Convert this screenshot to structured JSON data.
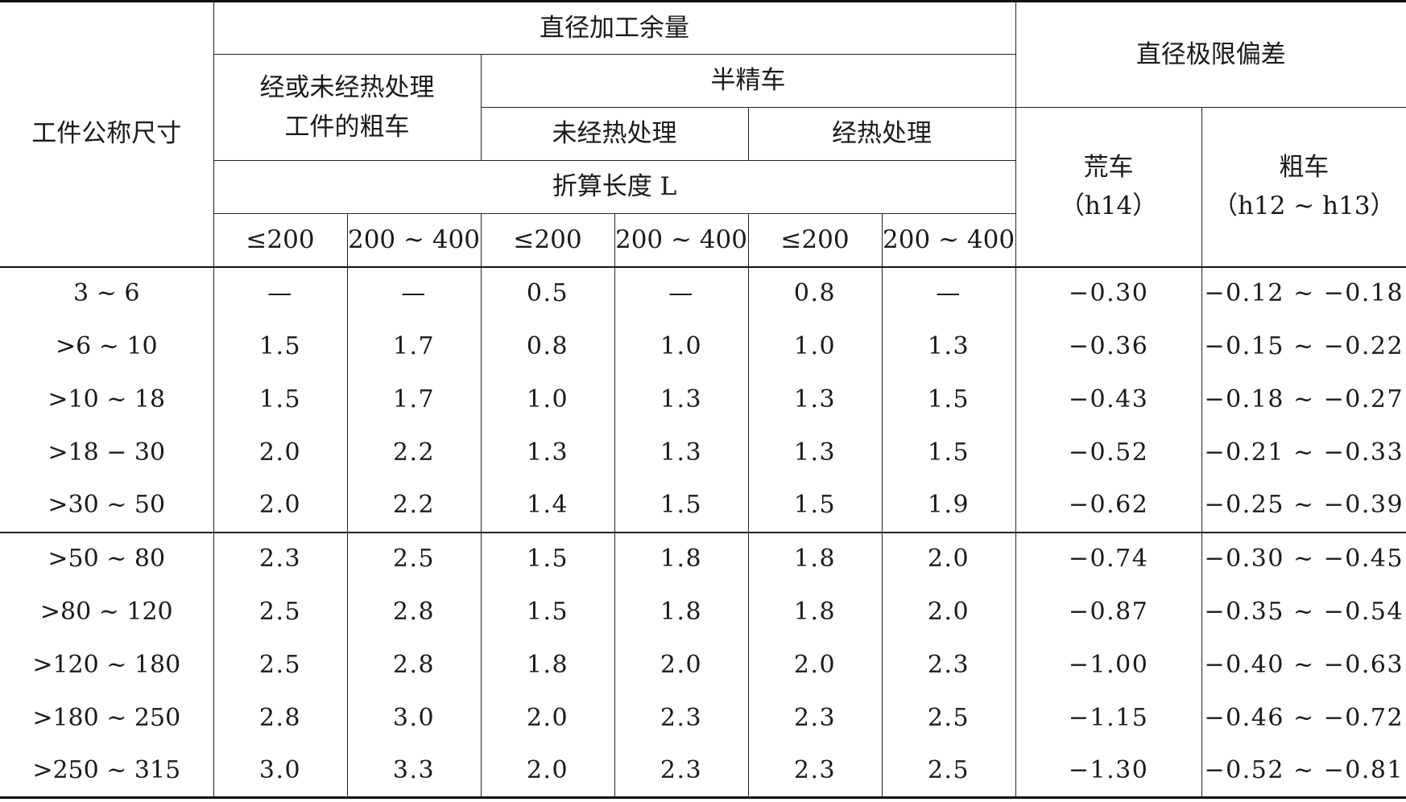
{
  "header": {
    "size_col": "工件公称尺寸",
    "allowance": "直径加工余量",
    "rough": {
      "line1": "经或未经热处理",
      "line2": "工件的粗车"
    },
    "semi_finish": "半精车",
    "untreated": "未经热处理",
    "treated": "经热处理",
    "length": "折算长度 L",
    "sub_cols": [
      "≤200",
      "200 ~ 400",
      "≤200",
      "200 ~ 400",
      "≤200",
      "200 ~ 400"
    ],
    "limit_dev": "直径极限偏差",
    "blank": {
      "line1": "荒车",
      "line2": "（h14）"
    },
    "rough_dev": {
      "line1": "粗车",
      "line2": "（h12 ~ h13）"
    }
  },
  "rows": [
    [
      "3 ~ 6",
      "—",
      "—",
      "0.5",
      "—",
      "0.8",
      "—",
      "−0.30",
      "−0.12 ~ −0.18"
    ],
    [
      ">6 ~ 10",
      "1.5",
      "1.7",
      "0.8",
      "1.0",
      "1.0",
      "1.3",
      "−0.36",
      "−0.15 ~ −0.22"
    ],
    [
      ">10 ~ 18",
      "1.5",
      "1.7",
      "1.0",
      "1.3",
      "1.3",
      "1.5",
      "−0.43",
      "−0.18 ~ −0.27"
    ],
    [
      ">18 − 30",
      "2.0",
      "2.2",
      "1.3",
      "1.3",
      "1.3",
      "1.5",
      "−0.52",
      "−0.21 ~ −0.33"
    ],
    [
      ">30 ~ 50",
      "2.0",
      "2.2",
      "1.4",
      "1.5",
      "1.5",
      "1.9",
      "−0.62",
      "−0.25 ~ −0.39"
    ],
    [
      ">50 ~ 80",
      "2.3",
      "2.5",
      "1.5",
      "1.8",
      "1.8",
      "2.0",
      "−0.74",
      "−0.30 ~ −0.45"
    ],
    [
      ">80 ~ 120",
      "2.5",
      "2.8",
      "1.5",
      "1.8",
      "1.8",
      "2.0",
      "−0.87",
      "−0.35 ~ −0.54"
    ],
    [
      ">120 ~ 180",
      "2.5",
      "2.8",
      "1.8",
      "2.0",
      "2.0",
      "2.3",
      "−1.00",
      "−0.40 ~ −0.63"
    ],
    [
      ">180 ~ 250",
      "2.8",
      "3.0",
      "2.0",
      "2.3",
      "2.3",
      "2.5",
      "−1.15",
      "−0.46 ~ −0.72"
    ],
    [
      ">250 ~ 315",
      "3.0",
      "3.3",
      "2.0",
      "2.3",
      "2.3",
      "2.5",
      "−1.30",
      "−0.52 ~ −0.81"
    ]
  ]
}
